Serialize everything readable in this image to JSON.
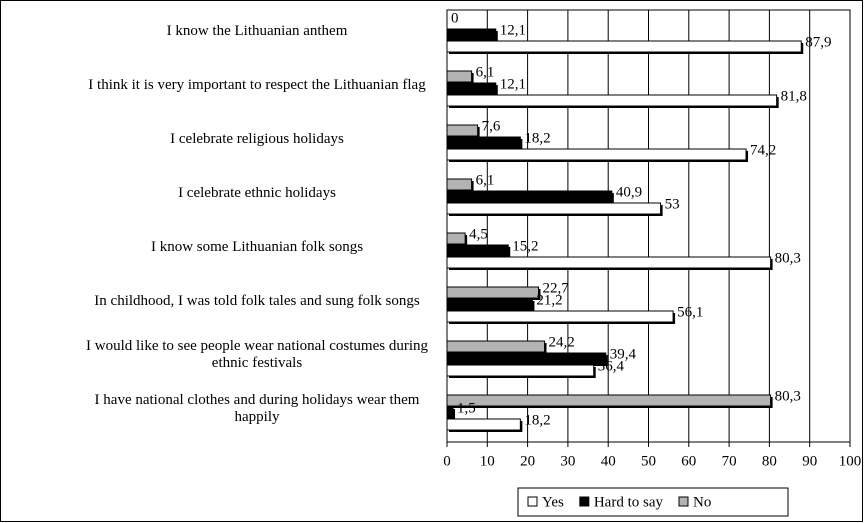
{
  "chart_data": {
    "type": "barh",
    "categories": [
      "I know the Lithuanian anthem",
      "I think it is very important to respect the Lithuanian flag",
      "I celebrate religious holidays",
      "I celebrate ethnic holidays",
      "I know some Lithuanian folk songs",
      "In childhood, I was told folk tales and sung folk songs",
      "I would like to see people wear national costumes during ethnic festivals",
      "I have national clothes and during holidays wear them happily"
    ],
    "series": [
      {
        "name": "Yes",
        "color": "#ffffff",
        "values": [
          87.9,
          81.8,
          74.2,
          53,
          80.3,
          56.1,
          36.4,
          18.2
        ],
        "value_labels": [
          "87,9",
          "81,8",
          "74,2",
          "53",
          "80,3",
          "56,1",
          "36,4",
          "18,2"
        ]
      },
      {
        "name": "Hard to say",
        "color": "#000000",
        "values": [
          12.1,
          12.1,
          18.2,
          40.9,
          15.2,
          21.2,
          39.4,
          1.5
        ],
        "value_labels": [
          "12,1",
          "12,1",
          "18,2",
          "40,9",
          "15,2",
          "21,2",
          "39,4",
          "1,5"
        ]
      },
      {
        "name": "No",
        "color": "#b3b3b3",
        "values": [
          0,
          6.1,
          7.6,
          6.1,
          4.5,
          22.7,
          24.2,
          80.3
        ],
        "value_labels": [
          "0",
          "6,1",
          "7,6",
          "6,1",
          "4,5",
          "22,7",
          "24,2",
          "80,3"
        ]
      }
    ],
    "xlim": [
      0,
      100
    ],
    "xticks": [
      0,
      10,
      20,
      30,
      40,
      50,
      60,
      70,
      80,
      90,
      100
    ],
    "grid": true,
    "legend": "bottom"
  }
}
